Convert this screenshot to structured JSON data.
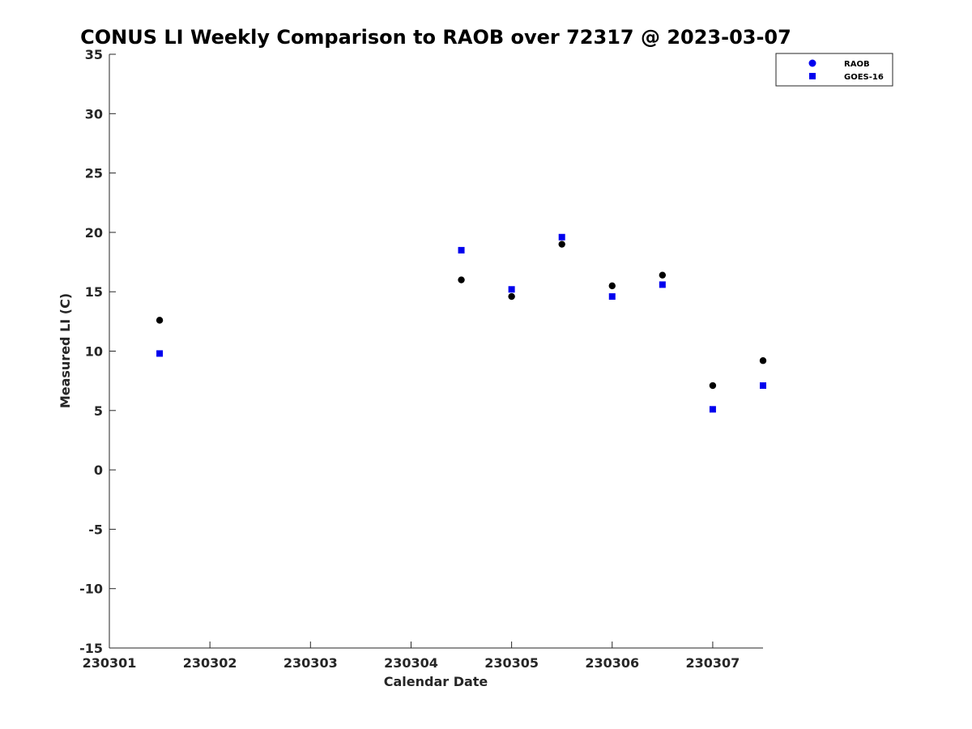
{
  "chart_data": {
    "type": "scatter",
    "title": "CONUS LI Weekly Comparison to RAOB over 72317 @ 2023-03-07",
    "xlabel": "Calendar Date",
    "ylabel": "Measured LI (C)",
    "xlim": [
      230301,
      230307.5
    ],
    "ylim": [
      -15,
      35
    ],
    "x_ticks": [
      230301,
      230302,
      230303,
      230304,
      230305,
      230306,
      230307
    ],
    "x_tick_labels": [
      "230301",
      "230302",
      "230303",
      "230304",
      "230305",
      "230306",
      "230307"
    ],
    "y_ticks": [
      -15,
      -10,
      -5,
      0,
      5,
      10,
      15,
      20,
      25,
      30,
      35
    ],
    "y_tick_labels": [
      "-15",
      "-10",
      "-5",
      "0",
      "5",
      "10",
      "15",
      "20",
      "25",
      "30",
      "35"
    ],
    "grid": false,
    "legend_position": "top-right",
    "series": [
      {
        "name": "RAOB",
        "marker": "circle",
        "color": "#000000",
        "legend_color": "#0000ee",
        "x": [
          230301.5,
          230304.5,
          230305.0,
          230305.5,
          230306.0,
          230306.5,
          230307.0,
          230307.5
        ],
        "y": [
          12.6,
          16.0,
          14.6,
          19.0,
          15.5,
          16.4,
          7.1,
          9.2
        ]
      },
      {
        "name": "GOES-16",
        "marker": "square",
        "color": "#0000ee",
        "legend_color": "#0000ee",
        "x": [
          230301.5,
          230304.5,
          230305.0,
          230305.5,
          230306.0,
          230306.5,
          230307.0,
          230307.5
        ],
        "y": [
          9.8,
          18.5,
          15.2,
          19.6,
          14.6,
          15.6,
          5.1,
          7.1
        ]
      }
    ]
  }
}
